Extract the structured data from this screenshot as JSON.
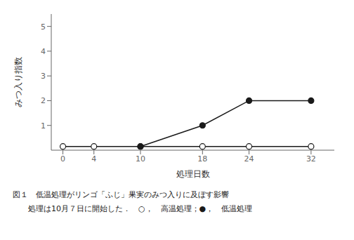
{
  "chart_data": {
    "type": "line",
    "xlabel": "処理日数",
    "ylabel": "みつ入り指数",
    "annotations": [
      "図１　低温処理がリンゴ「ふじ」果実のみつ入りに及ぼす影響",
      "　　処理は10月７日に開始した．　○，　高温処理；●，　低温処理"
    ],
    "series": [
      {
        "color": "#1a1a1a",
        "marker": "circle_open",
        "x": [
          0,
          4,
          10,
          18,
          24,
          32
        ],
        "values": [
          0.15,
          0.15,
          0.15,
          0.15,
          0.15,
          0.15
        ]
      },
      {
        "color": "#1a1a1a",
        "marker": "circle",
        "x": [
          10,
          18,
          24,
          32
        ],
        "values": [
          0.15,
          1.0,
          2.0,
          2.0
        ]
      }
    ],
    "xlim": [
      -1.5,
      35
    ],
    "ylim": [
      0,
      5.5
    ],
    "xticks": [
      0,
      4,
      10,
      18,
      24,
      32
    ],
    "yticks": [
      1,
      2,
      3,
      4,
      5
    ],
    "grid": false
  }
}
